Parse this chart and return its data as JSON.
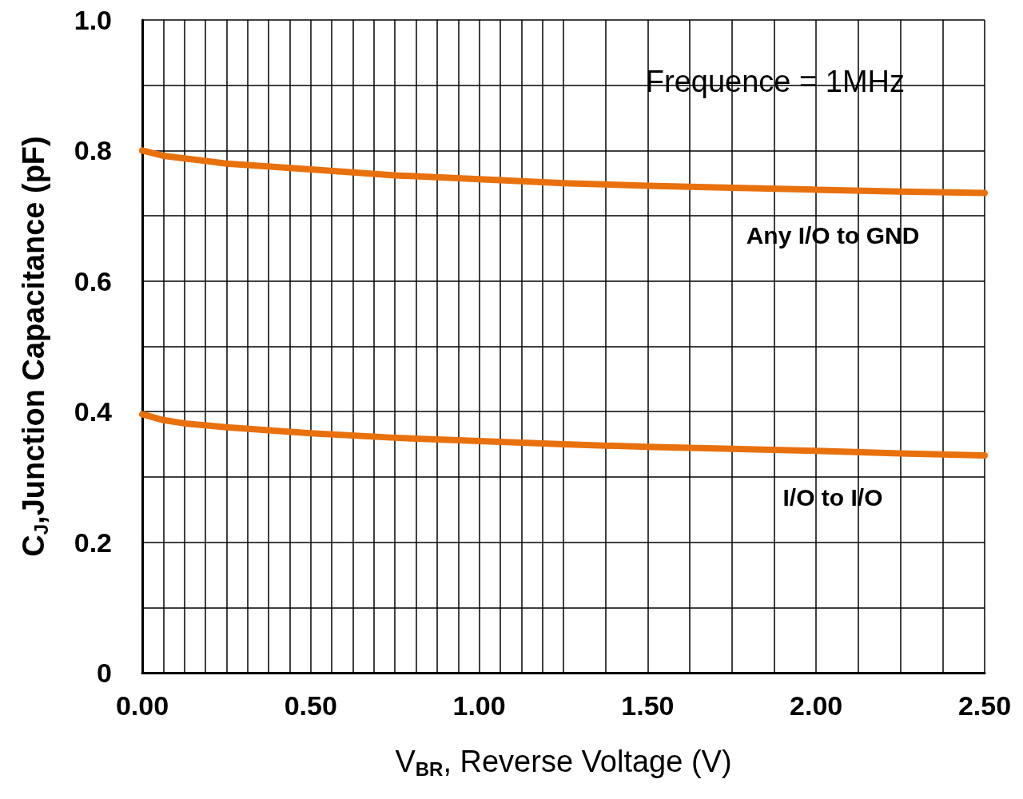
{
  "chart_data": {
    "type": "line",
    "xlabel": "V$_{BR}$, Reverse Voltage (V)",
    "ylabel": "C$_{J}$,Junction Capacitance (pF)",
    "annotations": [
      "Frequence = 1MHz"
    ],
    "x": [
      0,
      0.0625,
      0.125,
      0.25,
      0.5,
      0.75,
      1.0,
      1.25,
      1.5,
      1.75,
      2.0,
      2.25,
      2.5
    ],
    "series": [
      {
        "name": "Any I/O to GND",
        "color": "#e8710e",
        "values": [
          0.8,
          0.792,
          0.788,
          0.78,
          0.771,
          0.762,
          0.756,
          0.75,
          0.746,
          0.743,
          0.74,
          0.737,
          0.735
        ]
      },
      {
        "name": "I/O to I/O",
        "color": "#e8710e",
        "values": [
          0.396,
          0.387,
          0.382,
          0.376,
          0.367,
          0.36,
          0.355,
          0.35,
          0.346,
          0.343,
          0.34,
          0.336,
          0.333
        ]
      }
    ],
    "xlim": [
      0,
      2.5
    ],
    "xticks": [
      {
        "value": 0,
        "label": "0.00"
      },
      {
        "value": 0.0625,
        "label": null
      },
      {
        "value": 0.125,
        "label": null
      },
      {
        "value": 0.1875,
        "label": null
      },
      {
        "value": 0.25,
        "label": null
      },
      {
        "value": 0.3125,
        "label": null
      },
      {
        "value": 0.375,
        "label": null
      },
      {
        "value": 0.4375,
        "label": null
      },
      {
        "value": 0.5,
        "label": "0.50"
      },
      {
        "value": 0.5625,
        "label": null
      },
      {
        "value": 0.625,
        "label": null
      },
      {
        "value": 0.6875,
        "label": null
      },
      {
        "value": 0.75,
        "label": null
      },
      {
        "value": 0.8125,
        "label": null
      },
      {
        "value": 0.875,
        "label": null
      },
      {
        "value": 0.9375,
        "label": null
      },
      {
        "value": 1,
        "label": "1.00"
      },
      {
        "value": 1.0625,
        "label": null
      },
      {
        "value": 1.125,
        "label": null
      },
      {
        "value": 1.1875,
        "label": null
      },
      {
        "value": 1.25,
        "label": null
      },
      {
        "value": 1.375,
        "label": null
      },
      {
        "value": 1.5,
        "label": "1.50"
      },
      {
        "value": 1.625,
        "label": null
      },
      {
        "value": 1.75,
        "label": null
      },
      {
        "value": 1.875,
        "label": null
      },
      {
        "value": 2,
        "label": "2.00"
      },
      {
        "value": 2.125,
        "label": null
      },
      {
        "value": 2.25,
        "label": null
      },
      {
        "value": 2.375,
        "label": null
      },
      {
        "value": 2.5,
        "label": "2.50"
      }
    ],
    "ylim": [
      0,
      1
    ],
    "yticks": [
      0,
      {
        "value": 0.1,
        "label": null
      },
      0.2,
      {
        "value": 0.3,
        "label": null
      },
      0.4,
      {
        "value": 0.5,
        "label": null
      },
      0.6,
      {
        "value": 0.7,
        "label": null
      },
      0.8,
      {
        "value": 0.9,
        "label": null
      },
      {
        "value": 1,
        "label": "1.0"
      }
    ],
    "grid": true,
    "marker": "none",
    "line_style": "solid"
  }
}
